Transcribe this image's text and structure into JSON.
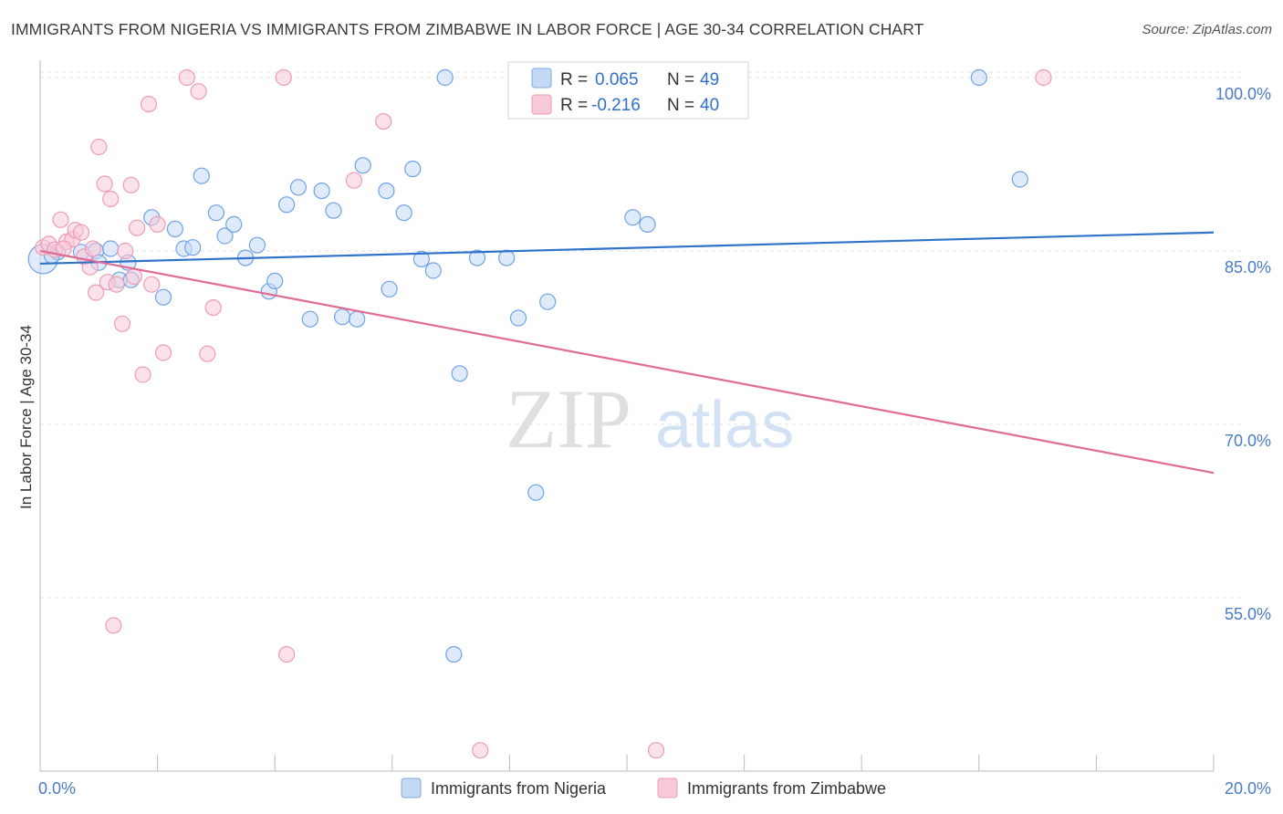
{
  "header": {
    "title": "IMMIGRANTS FROM NIGERIA VS IMMIGRANTS FROM ZIMBABWE IN LABOR FORCE | AGE 30-34 CORRELATION CHART",
    "source": "Source: ZipAtlas.com"
  },
  "watermark": {
    "zip": "ZIP",
    "atlas": "atlas"
  },
  "chart_data": {
    "type": "scatter",
    "xlabel": "",
    "ylabel": "In Labor Force | Age 30-34",
    "xlim": [
      0,
      20
    ],
    "ylim": [
      40,
      101.5
    ],
    "x_tick_labels": [
      "0.0%",
      "20.0%"
    ],
    "y_ticks": [
      {
        "value": 100,
        "label": "100.0%"
      },
      {
        "value": 85,
        "label": "85.0%"
      },
      {
        "value": 70,
        "label": "70.0%"
      },
      {
        "value": 55,
        "label": "55.0%"
      }
    ],
    "grid": true,
    "legend_position": "top-center",
    "stats": [
      {
        "r_label": "R = ",
        "r_value": "0.065",
        "n_label": "N = ",
        "n_value": "49"
      },
      {
        "r_label": "R = ",
        "r_value": "-0.216",
        "n_label": "N = ",
        "n_value": "40"
      }
    ],
    "series": [
      {
        "name": "Immigrants from Nigeria",
        "color": "#6fa3e6",
        "fill": "#c4d9f5",
        "line_color": "#2e72c9",
        "trend": {
          "x": [
            0,
            20
          ],
          "y": [
            83.9,
            86.6
          ]
        },
        "points": [
          [
            0.05,
            84.3
          ],
          [
            0.3,
            84.9
          ],
          [
            0.7,
            84.9
          ],
          [
            0.95,
            85.0
          ],
          [
            1.0,
            84.0
          ],
          [
            1.5,
            84.0
          ],
          [
            1.35,
            82.5
          ],
          [
            1.55,
            82.5
          ],
          [
            1.9,
            87.9
          ],
          [
            2.1,
            81.0
          ],
          [
            2.3,
            86.9
          ],
          [
            2.45,
            85.2
          ],
          [
            2.6,
            85.3
          ],
          [
            2.75,
            91.5
          ],
          [
            3.0,
            88.3
          ],
          [
            3.15,
            86.3
          ],
          [
            3.3,
            87.3
          ],
          [
            3.5,
            84.4
          ],
          [
            3.7,
            85.5
          ],
          [
            3.9,
            81.5
          ],
          [
            4.0,
            82.4
          ],
          [
            4.2,
            89.0
          ],
          [
            4.4,
            90.5
          ],
          [
            4.6,
            79.1
          ],
          [
            4.8,
            90.2
          ],
          [
            5.0,
            88.5
          ],
          [
            5.15,
            79.3
          ],
          [
            5.4,
            79.1
          ],
          [
            5.5,
            92.4
          ],
          [
            5.9,
            90.2
          ],
          [
            5.95,
            81.7
          ],
          [
            6.2,
            88.3
          ],
          [
            6.35,
            92.1
          ],
          [
            6.5,
            84.3
          ],
          [
            6.7,
            83.3
          ],
          [
            6.9,
            100.0
          ],
          [
            7.15,
            74.4
          ],
          [
            7.45,
            84.4
          ],
          [
            7.95,
            84.4
          ],
          [
            8.15,
            79.2
          ],
          [
            8.45,
            64.1
          ],
          [
            8.65,
            80.6
          ],
          [
            10.1,
            87.9
          ],
          [
            10.35,
            87.3
          ],
          [
            7.05,
            50.1
          ],
          [
            16.0,
            100.0
          ],
          [
            16.7,
            91.2
          ],
          [
            1.2,
            85.2
          ],
          [
            0.2,
            84.6
          ]
        ]
      },
      {
        "name": "Immigrants from Zimbabwe",
        "color": "#ee9cb6",
        "fill": "#f8c9d8",
        "line_color": "#e06b95",
        "trend": {
          "x": [
            0,
            20
          ],
          "y": [
            85.0,
            65.8
          ]
        },
        "points": [
          [
            0.05,
            85.3
          ],
          [
            0.15,
            85.6
          ],
          [
            0.25,
            85.1
          ],
          [
            0.35,
            87.7
          ],
          [
            0.45,
            85.8
          ],
          [
            0.55,
            86.0
          ],
          [
            0.6,
            86.8
          ],
          [
            0.7,
            86.6
          ],
          [
            0.75,
            84.5
          ],
          [
            0.85,
            83.6
          ],
          [
            0.95,
            81.4
          ],
          [
            1.0,
            94.0
          ],
          [
            1.1,
            90.8
          ],
          [
            1.15,
            82.3
          ],
          [
            1.2,
            89.5
          ],
          [
            1.3,
            82.1
          ],
          [
            1.4,
            78.7
          ],
          [
            1.45,
            85.0
          ],
          [
            1.55,
            90.7
          ],
          [
            1.6,
            82.8
          ],
          [
            1.65,
            87.0
          ],
          [
            1.75,
            74.3
          ],
          [
            1.85,
            97.7
          ],
          [
            1.9,
            82.1
          ],
          [
            2.0,
            87.3
          ],
          [
            2.1,
            76.2
          ],
          [
            2.5,
            100.0
          ],
          [
            2.7,
            98.8
          ],
          [
            2.85,
            76.1
          ],
          [
            2.95,
            80.1
          ],
          [
            4.15,
            100.0
          ],
          [
            5.35,
            91.1
          ],
          [
            5.85,
            96.2
          ],
          [
            17.1,
            100.0
          ],
          [
            1.25,
            52.6
          ],
          [
            4.2,
            50.1
          ],
          [
            7.5,
            41.8
          ],
          [
            10.5,
            41.8
          ],
          [
            0.9,
            85.2
          ],
          [
            0.4,
            85.2
          ]
        ]
      }
    ]
  }
}
